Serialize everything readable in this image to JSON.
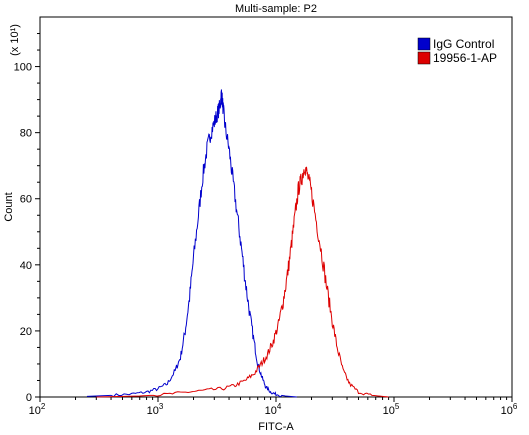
{
  "chart_data": {
    "type": "line",
    "title": "Multi-sample: P2",
    "xlabel": "FITC-A",
    "ylabel": "Count",
    "y_scale_label": "(x 10¹)",
    "x_scale": "log",
    "x_range": [
      100,
      1000000
    ],
    "y_range": [
      0,
      115
    ],
    "x_ticks": [
      {
        "value": 100,
        "base": "10",
        "exp": "2"
      },
      {
        "value": 1000,
        "base": "10",
        "exp": "3"
      },
      {
        "value": 10000,
        "base": "10",
        "exp": "4"
      },
      {
        "value": 100000,
        "base": "10",
        "exp": "5"
      },
      {
        "value": 1000000,
        "base": "10",
        "exp": "6"
      }
    ],
    "y_ticks": [
      "0",
      "20",
      "40",
      "60",
      "80",
      "100"
    ],
    "legend_position": "top-right",
    "grid": false,
    "series": [
      {
        "name": "IgG Control",
        "color": "#0000cc",
        "points": [
          [
            250,
            0.2
          ],
          [
            400,
            0.5
          ],
          [
            600,
            0.9
          ],
          [
            800,
            1.5
          ],
          [
            1000,
            2.5
          ],
          [
            1200,
            4
          ],
          [
            1400,
            8
          ],
          [
            1550,
            12
          ],
          [
            1700,
            20
          ],
          [
            1850,
            30
          ],
          [
            2000,
            42
          ],
          [
            2200,
            55
          ],
          [
            2400,
            67
          ],
          [
            2600,
            75
          ],
          [
            2800,
            80
          ],
          [
            3000,
            83
          ],
          [
            3200,
            86
          ],
          [
            3350,
            88
          ],
          [
            3450,
            92
          ],
          [
            3550,
            88
          ],
          [
            3700,
            82
          ],
          [
            4000,
            75
          ],
          [
            4300,
            66
          ],
          [
            4700,
            55
          ],
          [
            5100,
            45
          ],
          [
            5500,
            35
          ],
          [
            6000,
            25
          ],
          [
            6500,
            17
          ],
          [
            7000,
            10
          ],
          [
            7600,
            6
          ],
          [
            8200,
            3
          ],
          [
            9000,
            1.5
          ],
          [
            10000,
            0.8
          ],
          [
            12000,
            0.3
          ],
          [
            15000,
            0
          ]
        ]
      },
      {
        "name": "19956-1-AP",
        "color": "#dd0000",
        "points": [
          [
            300,
            0
          ],
          [
            700,
            0.3
          ],
          [
            1200,
            0.8
          ],
          [
            1800,
            1.5
          ],
          [
            2500,
            2
          ],
          [
            3500,
            2.5
          ],
          [
            4500,
            3.5
          ],
          [
            5500,
            5
          ],
          [
            6500,
            7
          ],
          [
            7500,
            10
          ],
          [
            8500,
            13
          ],
          [
            9500,
            17
          ],
          [
            10500,
            22
          ],
          [
            11500,
            29
          ],
          [
            12500,
            37
          ],
          [
            13500,
            46
          ],
          [
            14500,
            55
          ],
          [
            15500,
            63
          ],
          [
            16500,
            66
          ],
          [
            17500,
            70
          ],
          [
            18500,
            67
          ],
          [
            20000,
            62
          ],
          [
            22000,
            53
          ],
          [
            24500,
            43
          ],
          [
            27000,
            33
          ],
          [
            30000,
            23
          ],
          [
            33000,
            15
          ],
          [
            37000,
            8
          ],
          [
            42000,
            4
          ],
          [
            50000,
            1.5
          ],
          [
            65000,
            0.5
          ],
          [
            90000,
            0
          ]
        ]
      }
    ]
  }
}
